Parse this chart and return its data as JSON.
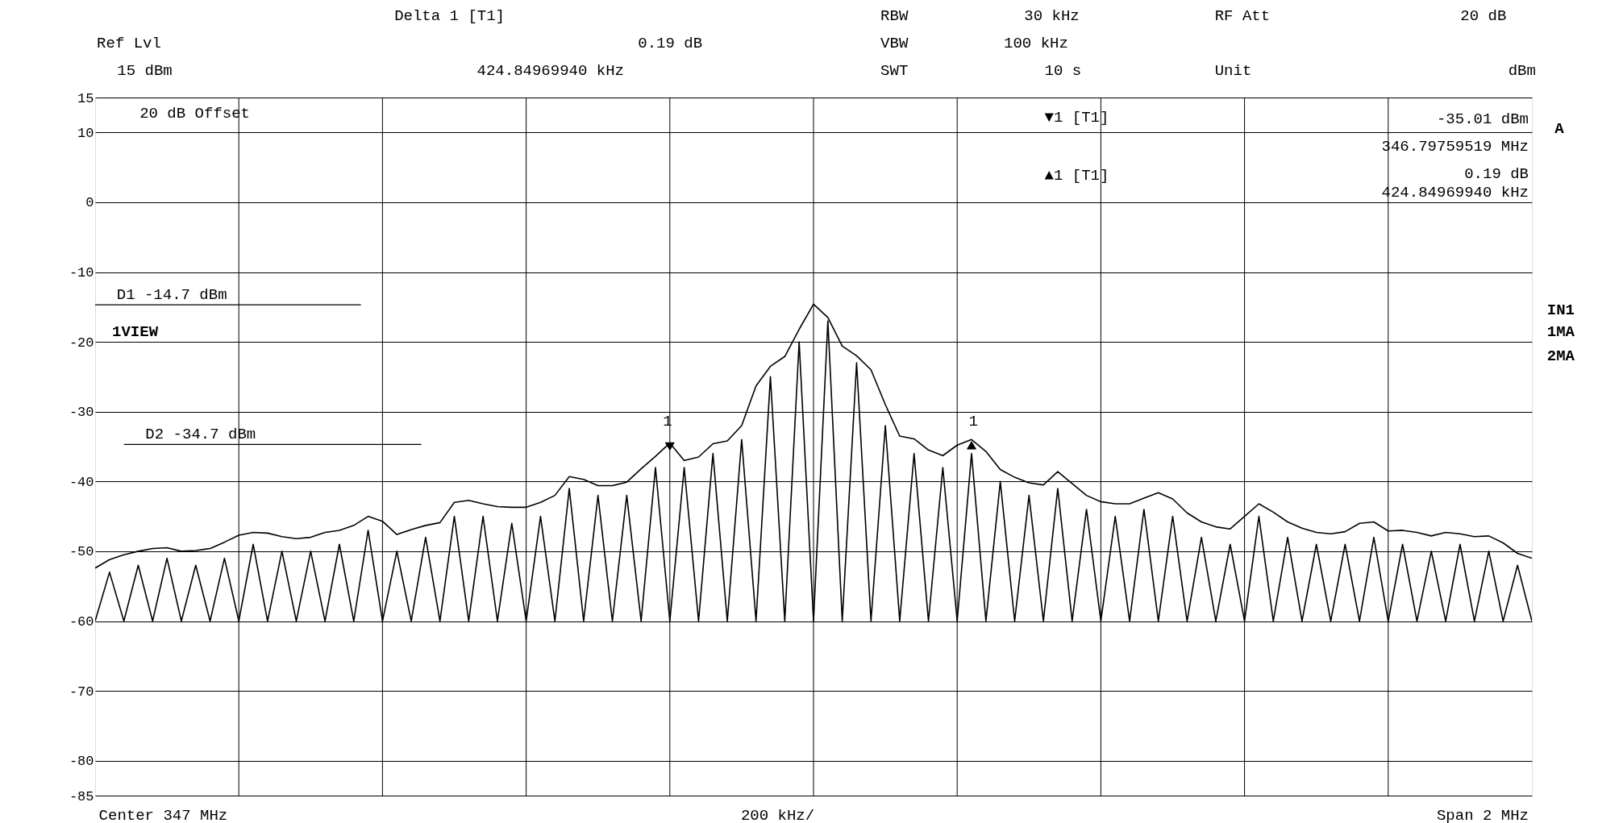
{
  "chart_data": {
    "type": "line",
    "categories": [
      null,
      null,
      null,
      null,
      null,
      null,
      null,
      null,
      null,
      null,
      null,
      null,
      null,
      null,
      null,
      null,
      null,
      null,
      null,
      null,
      null,
      null,
      null,
      null,
      null,
      null,
      null,
      null,
      null,
      null,
      null,
      null,
      null,
      null,
      null,
      null,
      null,
      null,
      null,
      null,
      null,
      null,
      null,
      null,
      null,
      null,
      null,
      null,
      null,
      null,
      null,
      null,
      null,
      null,
      null,
      null,
      null,
      null,
      null,
      null,
      null,
      null,
      null,
      null,
      null,
      null,
      null,
      null,
      null,
      null,
      null,
      null,
      null,
      null,
      null,
      null,
      null,
      null,
      null,
      null,
      null,
      null,
      null,
      null,
      null,
      null,
      null,
      null,
      null,
      null,
      null,
      null,
      null,
      null,
      null,
      null,
      null,
      null,
      null,
      null,
      null
    ],
    "ylim": [
      -85,
      15
    ],
    "yticks": [
      15,
      10,
      0,
      -10,
      -20,
      -30,
      -40,
      -50,
      -60,
      -70,
      -80,
      -85
    ],
    "grid": true,
    "line_style": "solid",
    "series": [
      {
        "color": "#000000",
        "values": [
          -52.4,
          -51.2,
          -50.5,
          -50,
          -49.6,
          -49.5,
          -50,
          -49.9,
          -49.6,
          -48.7,
          -47.7,
          -47.3,
          -47.4,
          -47.9,
          -48.2,
          -48,
          -47.3,
          -47,
          -46.3,
          -45,
          -45.7,
          -47.6,
          -46.9,
          -46.3,
          -45.9,
          -43,
          -42.7,
          -43.2,
          -43.6,
          -43.7,
          -43.7,
          -43,
          -42,
          -39.3,
          -39.7,
          -40.6,
          -40.6,
          -40.1,
          -38.2,
          -36.4,
          -34.5,
          -37,
          -36.5,
          -34.6,
          -34.2,
          -32,
          -26.3,
          -23.5,
          -22.1,
          -18.2,
          -14.6,
          -16.5,
          -20.6,
          -22,
          -24,
          -29,
          -33.5,
          -33.9,
          -35.5,
          -36.3,
          -34.8,
          -34,
          -35.7,
          -38.3,
          -39.4,
          -40.2,
          -40.5,
          -38.6,
          -40.3,
          -42,
          -42.9,
          -43.2,
          -43.2,
          -42.4,
          -41.6,
          -42.5,
          -44.5,
          -45.8,
          -46.5,
          -46.8,
          -45,
          -43.2,
          -44.4,
          -45.8,
          -46.7,
          -47.3,
          -47.5,
          -47.2,
          -46,
          -45.8,
          -47.1,
          -47,
          -47.3,
          -47.8,
          -47.3,
          -47.5,
          -47.9,
          -47.8,
          -48.8,
          -50.3,
          -51
        ]
      },
      {
        "color": "#000000",
        "values": [
          -60,
          -53,
          -60,
          -52,
          -60,
          -51,
          -60,
          -52,
          -60,
          -51,
          -60,
          -49,
          -60,
          -50,
          -60,
          -50,
          -60,
          -49,
          -60,
          -47,
          -60,
          -50,
          -60,
          -48,
          -60,
          -45,
          -60,
          -45,
          -60,
          -46,
          -60,
          -45,
          -60,
          -41,
          -60,
          -42,
          -60,
          -42,
          -60,
          -38,
          -60,
          -38,
          -60,
          -36,
          -60,
          -34,
          -60,
          -25,
          -60,
          -20,
          -60,
          -17,
          -60,
          -23,
          -60,
          -32,
          -60,
          -36,
          -60,
          -38,
          -60,
          -36,
          -60,
          -40,
          -60,
          -42,
          -60,
          -41,
          -60,
          -44,
          -60,
          -45,
          -60,
          -44,
          -60,
          -45,
          -60,
          -48,
          -60,
          -49,
          -60,
          -45,
          -60,
          -48,
          -60,
          -49,
          -60,
          -49,
          -60,
          -48,
          -60,
          -49,
          -60,
          -50,
          -60,
          -49,
          -60,
          -50,
          -60,
          -52,
          -60
        ]
      },
      {
        "type": "scatter",
        "marker": "triangle",
        "color": "#000000",
        "values": [
          null,
          null,
          null,
          null,
          null,
          null,
          null,
          null,
          null,
          null,
          null,
          null,
          null,
          null,
          null,
          null,
          null,
          null,
          null,
          null,
          null,
          null,
          null,
          null,
          null,
          null,
          null,
          null,
          null,
          null,
          null,
          null,
          null,
          null,
          null,
          null,
          null,
          null,
          null,
          null,
          -35.0,
          null,
          null,
          null,
          null,
          null,
          null,
          null,
          null,
          null,
          null,
          null,
          null,
          null,
          null,
          null,
          null,
          null,
          null,
          null,
          null,
          null,
          null,
          null,
          null,
          null,
          null,
          null,
          null,
          null,
          null,
          null,
          null,
          null,
          null,
          null,
          null,
          null,
          null,
          null,
          null,
          null,
          null,
          null,
          null,
          null,
          null,
          null,
          null,
          null,
          null,
          null,
          null,
          null,
          null,
          null,
          null,
          null,
          null,
          null,
          null
        ]
      },
      {
        "type": "scatter",
        "marker": "triangle",
        "color": "#000000",
        "values": [
          null,
          null,
          null,
          null,
          null,
          null,
          null,
          null,
          null,
          null,
          null,
          null,
          null,
          null,
          null,
          null,
          null,
          null,
          null,
          null,
          null,
          null,
          null,
          null,
          null,
          null,
          null,
          null,
          null,
          null,
          null,
          null,
          null,
          null,
          null,
          null,
          null,
          null,
          null,
          null,
          null,
          null,
          null,
          null,
          null,
          null,
          null,
          null,
          null,
          null,
          null,
          null,
          null,
          null,
          null,
          null,
          null,
          null,
          null,
          null,
          null,
          -34.8,
          null,
          null,
          null,
          null,
          null,
          null,
          null,
          null,
          null,
          null,
          null,
          null,
          null,
          null,
          null,
          null,
          null,
          null,
          null,
          null,
          null,
          null,
          null,
          null,
          null,
          null,
          null,
          null,
          null,
          null,
          null,
          null,
          null,
          null,
          null,
          null,
          null,
          null,
          null
        ]
      }
    ],
    "ref_lines": [
      {
        "axis": "y",
        "value": -14.7,
        "label": "D1 -14.7 dBm"
      },
      {
        "axis": "y",
        "value": -34.7,
        "label": "D2 -34.7 dBm"
      }
    ],
    "annotations": [
      "Delta 1 [T1]",
      "RBW",
      "30 kHz",
      "RF Att",
      "20 dB",
      "Ref Lvl",
      "0.19 dB",
      "VBW",
      "100 kHz",
      "15 dBm",
      "424.84969940 kHz",
      "SWT",
      "10 s",
      "Unit",
      "dBm",
      "20 dB Offset",
      "▼1 [T1]",
      "-35.01 dBm",
      "346.79759519 MHz",
      "▲1 [T1]",
      "0.19 dB",
      "424.84969940 kHz",
      "1VIEW",
      "A",
      "IN1",
      "1MA",
      "2MA",
      "Center 347 MHz",
      "200 kHz/",
      "Span 2 MHz",
      "1",
      "1"
    ]
  }
}
